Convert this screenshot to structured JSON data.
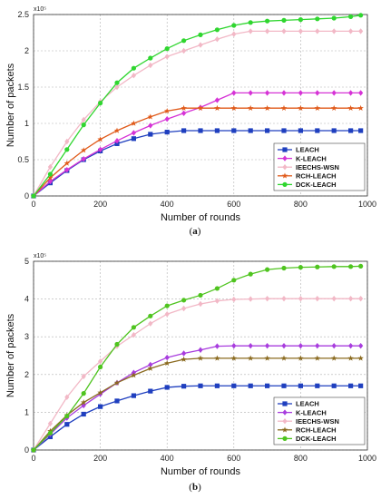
{
  "chart_data": [
    {
      "type": "line",
      "panel_label": "(a)",
      "xlabel": "Number of rounds",
      "ylabel": "Number of packets",
      "y_exponent_label": "x10⁵",
      "xlim": [
        0,
        1000
      ],
      "ylim": [
        0,
        2.5
      ],
      "xticks": [
        "0",
        "200",
        "400",
        "600",
        "800",
        "1000"
      ],
      "yticks": [
        "0",
        "0.5",
        "1",
        "1.5",
        "2",
        "2.5"
      ],
      "grid": true,
      "legend_position": "bottom-right",
      "x": [
        0,
        50,
        100,
        150,
        200,
        250,
        300,
        350,
        400,
        450,
        500,
        550,
        600,
        650,
        700,
        750,
        800,
        850,
        900,
        950,
        980
      ],
      "series": [
        {
          "name": "LEACH",
          "color": "#1f3fbf",
          "marker": "square",
          "values": [
            0,
            0.18,
            0.35,
            0.5,
            0.62,
            0.72,
            0.79,
            0.85,
            0.88,
            0.9,
            0.9,
            0.9,
            0.9,
            0.9,
            0.9,
            0.9,
            0.9,
            0.9,
            0.9,
            0.9,
            0.9
          ]
        },
        {
          "name": "K-LEACH",
          "color": "#d633d6",
          "marker": "diamond",
          "values": [
            0,
            0.2,
            0.36,
            0.51,
            0.64,
            0.76,
            0.87,
            0.97,
            1.06,
            1.14,
            1.22,
            1.32,
            1.42,
            1.42,
            1.42,
            1.42,
            1.42,
            1.42,
            1.42,
            1.42,
            1.42
          ]
        },
        {
          "name": "IEECHS-WSN",
          "color": "#f2b8c6",
          "marker": "diamond",
          "values": [
            0,
            0.4,
            0.75,
            1.05,
            1.3,
            1.5,
            1.66,
            1.8,
            1.92,
            2.0,
            2.08,
            2.16,
            2.23,
            2.27,
            2.27,
            2.27,
            2.27,
            2.27,
            2.27,
            2.27,
            2.27
          ]
        },
        {
          "name": "RCH-LEACH",
          "color": "#e05a1a",
          "marker": "star",
          "values": [
            0,
            0.25,
            0.45,
            0.63,
            0.78,
            0.9,
            1.0,
            1.09,
            1.17,
            1.21,
            1.21,
            1.21,
            1.21,
            1.21,
            1.21,
            1.21,
            1.21,
            1.21,
            1.21,
            1.21,
            1.21
          ]
        },
        {
          "name": "DCK-LEACH",
          "color": "#2fd62f",
          "marker": "circle",
          "values": [
            0,
            0.3,
            0.64,
            0.98,
            1.28,
            1.56,
            1.76,
            1.9,
            2.03,
            2.14,
            2.22,
            2.29,
            2.35,
            2.39,
            2.41,
            2.42,
            2.43,
            2.44,
            2.45,
            2.47,
            2.49
          ]
        }
      ]
    },
    {
      "type": "line",
      "panel_label": "(b)",
      "xlabel": "Number of rounds",
      "ylabel": "Number of packets",
      "y_exponent_label": "x10⁵",
      "xlim": [
        0,
        1000
      ],
      "ylim": [
        0,
        5
      ],
      "xticks": [
        "0",
        "200",
        "400",
        "600",
        "800",
        "1000"
      ],
      "yticks": [
        "0",
        "1",
        "2",
        "3",
        "4",
        "5"
      ],
      "grid": true,
      "legend_position": "bottom-right",
      "x": [
        0,
        50,
        100,
        150,
        200,
        250,
        300,
        350,
        400,
        450,
        500,
        550,
        600,
        650,
        700,
        750,
        800,
        850,
        900,
        950,
        980
      ],
      "series": [
        {
          "name": "LEACH",
          "color": "#1f3fbf",
          "marker": "square",
          "values": [
            0,
            0.35,
            0.68,
            0.95,
            1.15,
            1.3,
            1.44,
            1.56,
            1.66,
            1.69,
            1.7,
            1.7,
            1.7,
            1.7,
            1.7,
            1.7,
            1.7,
            1.7,
            1.7,
            1.7,
            1.7
          ]
        },
        {
          "name": "K-LEACH",
          "color": "#a83dde",
          "marker": "diamond",
          "values": [
            0,
            0.42,
            0.85,
            1.18,
            1.48,
            1.78,
            2.05,
            2.26,
            2.45,
            2.56,
            2.65,
            2.75,
            2.76,
            2.76,
            2.76,
            2.76,
            2.76,
            2.76,
            2.76,
            2.76,
            2.76
          ]
        },
        {
          "name": "IEECHS-WSN",
          "color": "#f2b8c6",
          "marker": "diamond",
          "values": [
            0,
            0.7,
            1.4,
            1.95,
            2.35,
            2.75,
            3.05,
            3.35,
            3.6,
            3.75,
            3.87,
            3.95,
            3.99,
            4.0,
            4.01,
            4.01,
            4.01,
            4.01,
            4.01,
            4.01,
            4.01
          ]
        },
        {
          "name": "RCH-LEACH",
          "color": "#8a6a1f",
          "marker": "star",
          "values": [
            0,
            0.5,
            0.92,
            1.26,
            1.52,
            1.78,
            1.98,
            2.16,
            2.3,
            2.4,
            2.43,
            2.43,
            2.43,
            2.43,
            2.43,
            2.43,
            2.43,
            2.43,
            2.43,
            2.43,
            2.43
          ]
        },
        {
          "name": "DCK-LEACH",
          "color": "#4fc41f",
          "marker": "circle",
          "values": [
            0,
            0.45,
            0.9,
            1.5,
            2.2,
            2.8,
            3.25,
            3.55,
            3.82,
            3.97,
            4.1,
            4.28,
            4.5,
            4.66,
            4.78,
            4.82,
            4.84,
            4.85,
            4.86,
            4.86,
            4.87
          ]
        }
      ]
    }
  ]
}
